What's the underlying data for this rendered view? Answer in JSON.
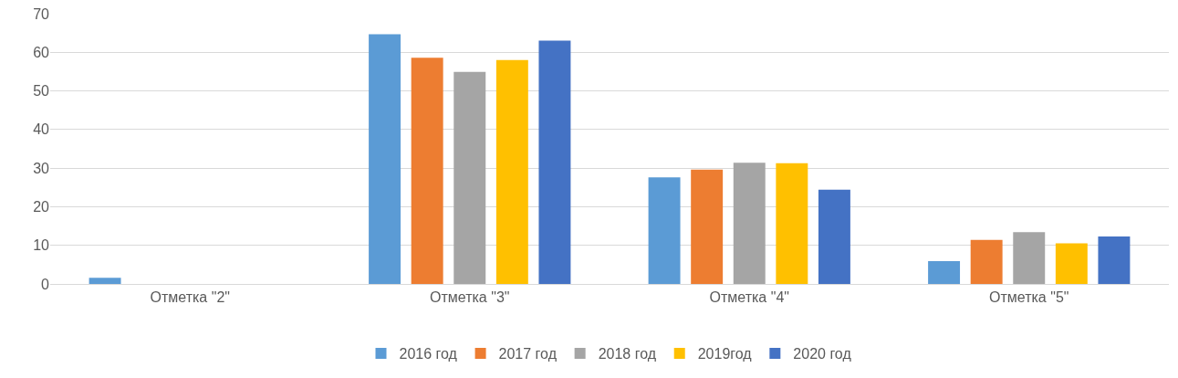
{
  "chart_data": {
    "type": "bar",
    "categories": [
      "Отметка \"2\"",
      "Отметка \"3\"",
      "Отметка \"4\"",
      "Отметка \"5\""
    ],
    "series": [
      {
        "name": "2016 год",
        "color": "#5b9bd5",
        "values": [
          1.6,
          64.7,
          27.6,
          5.9
        ]
      },
      {
        "name": "2017 год",
        "color": "#ed7d31",
        "values": [
          0,
          58.6,
          29.6,
          11.4
        ]
      },
      {
        "name": "2018 год",
        "color": "#a5a5a5",
        "values": [
          0,
          54.9,
          31.4,
          13.4
        ]
      },
      {
        "name": "2019год",
        "color": "#ffc000",
        "values": [
          0,
          58.0,
          31.3,
          10.5
        ]
      },
      {
        "name": "2020 год",
        "color": "#4472c4",
        "values": [
          0,
          63.0,
          24.4,
          12.3
        ]
      }
    ],
    "ylim": [
      0,
      70
    ],
    "yticks": [
      0,
      10,
      20,
      30,
      40,
      50,
      60,
      70
    ],
    "grid": "y",
    "legend": "bottom"
  }
}
